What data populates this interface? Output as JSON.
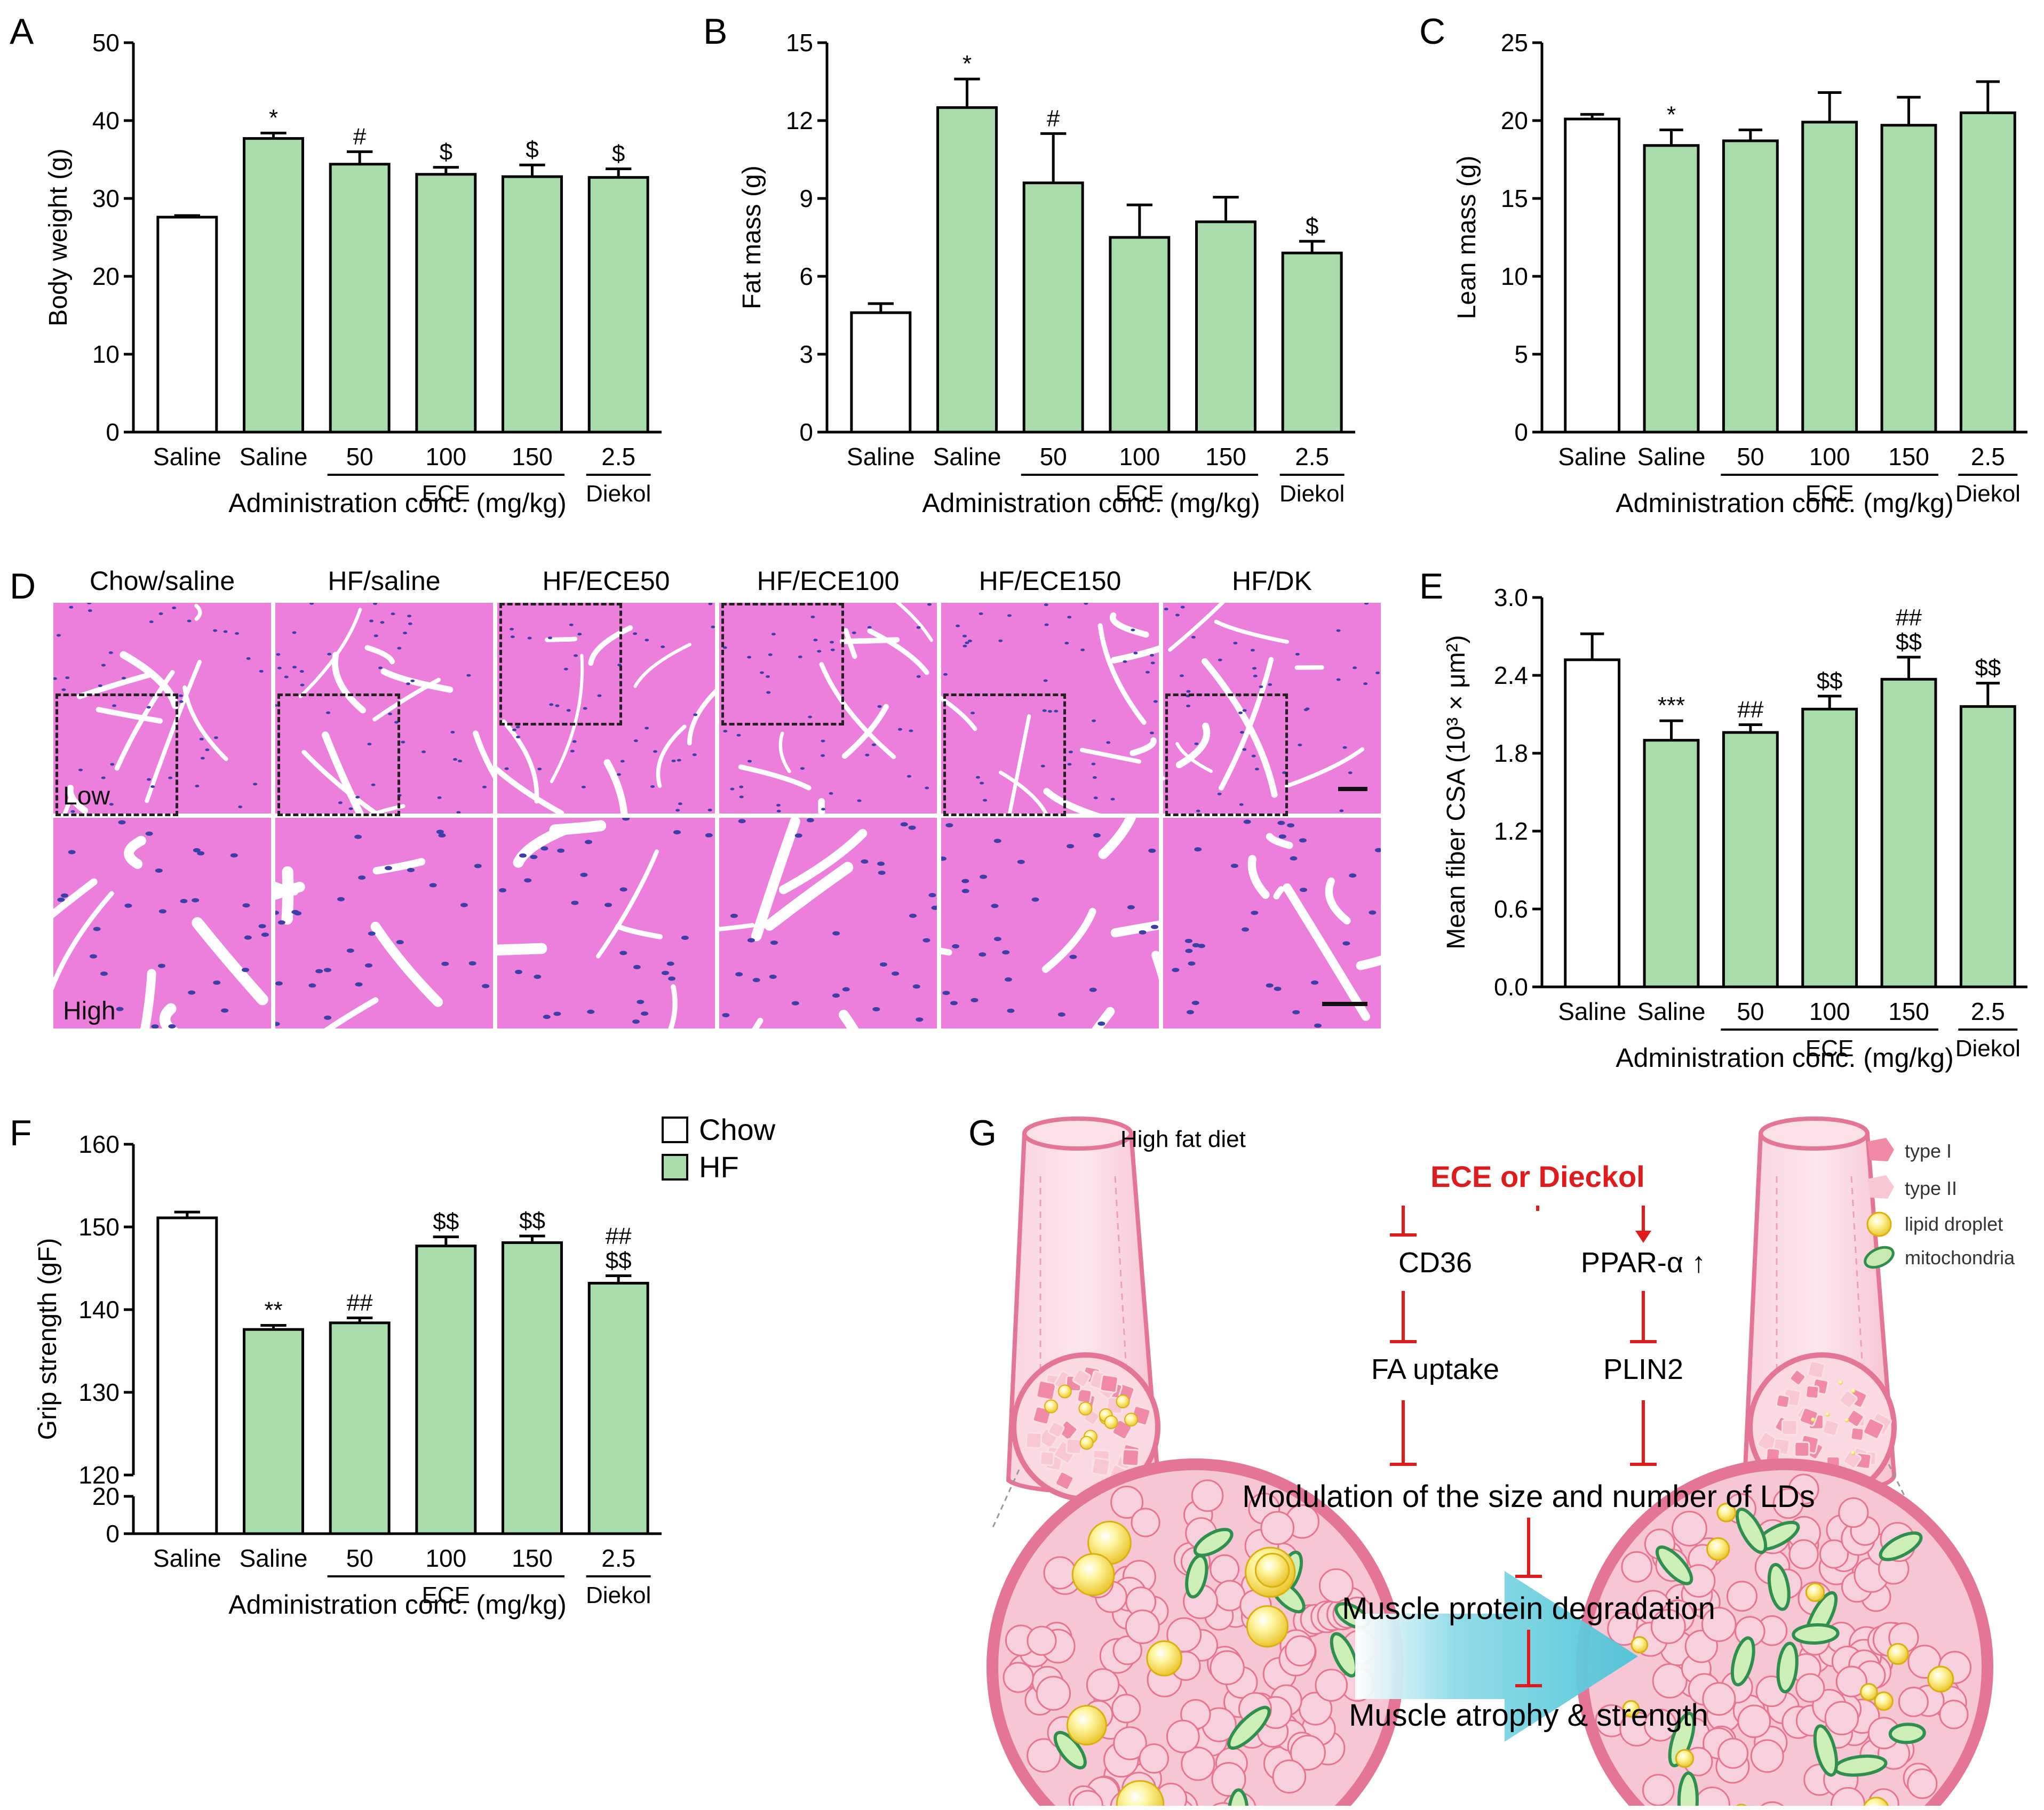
{
  "colors": {
    "chow": "#ffffff",
    "hf": "#a8dcaa",
    "stroke": "#000000",
    "tissue": "#e875d6",
    "nuclei": "#3b3fa8",
    "red": "#e01b1b",
    "pink": "#f2a7bd",
    "arrow": "#5cc9db"
  },
  "bar_charts": [
    {
      "id": "A",
      "ylabel": "Body weight (g)",
      "yticks": [
        "0",
        "10",
        "20",
        "30",
        "40",
        "50"
      ],
      "ylim": [
        0,
        50
      ],
      "values": [
        27.6,
        37.7,
        34.4,
        33.1,
        32.8,
        32.7
      ],
      "errors": [
        0.2,
        0.7,
        1.6,
        0.9,
        1.5,
        1.1
      ],
      "annotations": [
        "",
        "*",
        "#",
        "$",
        "$",
        "$"
      ]
    },
    {
      "id": "B",
      "ylabel": "Fat mass (g)",
      "yticks": [
        "0",
        "3",
        "6",
        "9",
        "12",
        "15"
      ],
      "ylim": [
        0,
        15
      ],
      "values": [
        4.6,
        12.5,
        9.6,
        7.5,
        8.1,
        6.9
      ],
      "errors": [
        0.35,
        1.1,
        1.9,
        1.25,
        0.95,
        0.45
      ],
      "annotations": [
        "",
        "*",
        "#",
        "",
        "",
        "$"
      ]
    },
    {
      "id": "C",
      "ylabel": "Lean mass (g)",
      "yticks": [
        "0",
        "5",
        "10",
        "15",
        "20",
        "25"
      ],
      "ylim": [
        0,
        25
      ],
      "values": [
        20.1,
        18.4,
        18.7,
        19.9,
        19.7,
        20.5
      ],
      "errors": [
        0.3,
        1.0,
        0.7,
        1.9,
        1.8,
        2.0
      ],
      "annotations": [
        "",
        "*",
        "",
        "",
        "",
        ""
      ]
    },
    {
      "id": "E",
      "ylabel": "Mean fiber CSA (10³ × μm²)",
      "yticks": [
        "0.0",
        "0.6",
        "1.2",
        "1.8",
        "2.4",
        "3.0"
      ],
      "ylim": [
        0,
        3
      ],
      "values": [
        2.52,
        1.9,
        1.96,
        2.14,
        2.37,
        2.16
      ],
      "errors": [
        0.2,
        0.15,
        0.06,
        0.1,
        0.17,
        0.18
      ],
      "annotations": [
        "",
        "***",
        "##",
        "$$",
        "##\n$$",
        "$$"
      ]
    },
    {
      "id": "F",
      "ylabel": "Grip strength (gF)",
      "yticks": [
        "0",
        "20",
        "120",
        "130",
        "140",
        "150",
        "160"
      ],
      "ylim": [
        0,
        160
      ],
      "values": [
        151.1,
        137.6,
        138.4,
        147.7,
        148.1,
        143.2
      ],
      "errors": [
        0.7,
        0.5,
        0.6,
        1.1,
        0.8,
        0.9
      ],
      "annotations": [
        "",
        "**",
        "##",
        "$$",
        "$$",
        "##\n$$"
      ]
    }
  ],
  "x_axis": {
    "categories": [
      "Saline",
      "Saline",
      "50",
      "100",
      "150",
      "2.5"
    ],
    "group_ece": "ECE",
    "group_diekol": "Diekol",
    "xlabel": "Administration conc. (mg/kg)"
  },
  "legend": {
    "chow": "Chow",
    "hf": "HF"
  },
  "histology": {
    "label": "D",
    "columns": [
      "Chow/saline",
      "HF/saline",
      "HF/ECE50",
      "HF/ECE100",
      "HF/ECE150",
      "HF/DK"
    ],
    "row_low": "Low",
    "row_high": "High"
  },
  "schematic": {
    "label": "G",
    "diet": "High fat diet",
    "treatment": "ECE or Dieckol",
    "cd36": "CD36",
    "ppar": "PPAR-α ↑",
    "fa_uptake": "FA uptake",
    "plin2": "PLIN2",
    "modulation": "Modulation of the size and number of LDs",
    "degradation": "Muscle protein degradation",
    "atrophy": "Muscle atrophy & strength",
    "legend_type1": "type I",
    "legend_type2": "type II",
    "legend_lipid": "lipid droplet",
    "legend_mito": "mitochondria"
  }
}
